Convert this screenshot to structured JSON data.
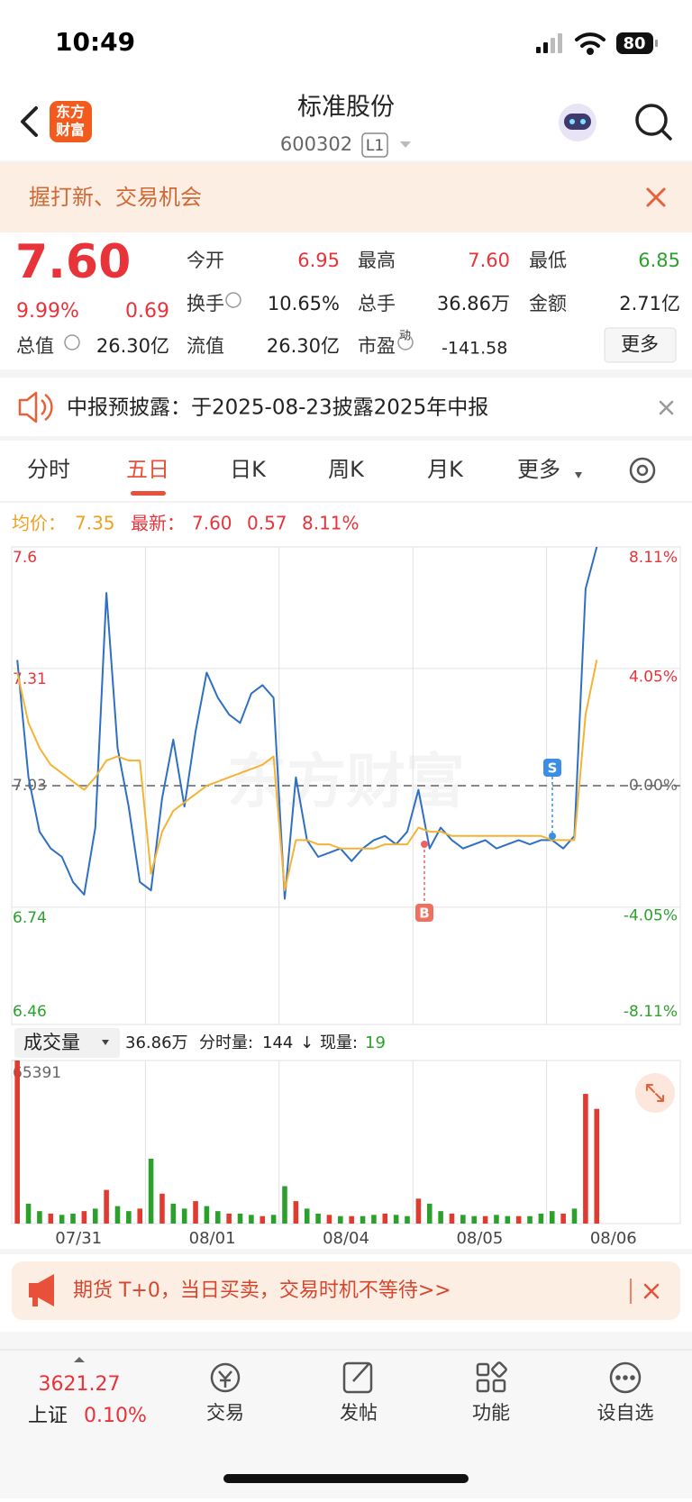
{
  "status": {
    "time": "10:49",
    "battery": "80"
  },
  "header": {
    "logo": [
      "东方",
      "财富"
    ],
    "title": "标准股份",
    "code": "600302",
    "level": "L1"
  },
  "promo": {
    "text": "握打新、交易机会"
  },
  "quote": {
    "price": "7.60",
    "change_pct": "9.99%",
    "change": "0.69",
    "fields": [
      {
        "label": "今开",
        "value": "6.95"
      },
      {
        "label": "最高",
        "value": "7.60"
      },
      {
        "label": "最低",
        "value": "6.85"
      },
      {
        "label": "换手",
        "value": "10.65%"
      },
      {
        "label": "总手",
        "value": "36.86万"
      },
      {
        "label": "金额",
        "value": "2.71亿"
      },
      {
        "label": "总值",
        "value": "26.30亿"
      },
      {
        "label": "流值",
        "value": "26.30亿"
      },
      {
        "label": "市盈",
        "sup": "动",
        "value": "-141.58"
      }
    ],
    "more": "更多"
  },
  "notice": {
    "text": "中报预披露：于2025-08-23披露2025年中报"
  },
  "tabs": [
    "分时",
    "五日",
    "日K",
    "周K",
    "月K",
    "更多"
  ],
  "summary": {
    "avg_label": "均价：",
    "avg": "7.35",
    "last_label": "最新：",
    "last": "7.60",
    "change": "0.57",
    "change_pct": "8.11%"
  },
  "watermark": "东方财富",
  "trade_marks": [
    "B",
    "S"
  ],
  "volume_header": {
    "label": "成交量",
    "total": "36.86万",
    "tick_label": "分时量:",
    "tick": "144",
    "arrow": "↓",
    "now_label": "现量:",
    "now": "19"
  },
  "chart_data": [
    {
      "type": "line",
      "grid": true,
      "ylim": [
        6.46,
        7.6
      ],
      "yticks": [
        6.46,
        6.74,
        7.03,
        7.31,
        7.6
      ],
      "y2lim": [
        -8.11,
        8.11
      ],
      "y2ticks": [
        {
          "value": -8.11,
          "label": "-8.11%"
        },
        {
          "value": -4.05,
          "label": "-4.05%"
        },
        {
          "value": 0,
          "label": "0.00%"
        },
        {
          "value": 4.05,
          "label": "4.05%"
        },
        {
          "value": 8.11,
          "label": "8.11%"
        }
      ],
      "series": [
        {
          "color": "#2f6fc3",
          "values": [
            7.33,
            7.05,
            6.92,
            6.88,
            6.86,
            6.8,
            6.77,
            6.93,
            7.49,
            7.12,
            6.98,
            6.8,
            6.78,
            7.0,
            7.14,
            6.98,
            7.16,
            7.3,
            7.24,
            7.2,
            7.18,
            7.25,
            7.27,
            7.24,
            6.76,
            7.05,
            6.9,
            6.86,
            6.87,
            6.88,
            6.85,
            6.88,
            6.9,
            6.91,
            6.89,
            6.92,
            7.02,
            6.88,
            6.93,
            6.9,
            6.88,
            6.89,
            6.9,
            6.88,
            6.89,
            6.9,
            6.89,
            6.9,
            6.9,
            6.88,
            6.91,
            7.5,
            7.6,
            null,
            null,
            null,
            null,
            null,
            null,
            null
          ]
        },
        {
          "color": "#f5b335",
          "values": [
            7.3,
            7.18,
            7.12,
            7.08,
            7.06,
            7.04,
            7.02,
            7.05,
            7.09,
            7.1,
            7.09,
            7.09,
            6.82,
            6.92,
            6.97,
            6.99,
            7.01,
            7.03,
            7.04,
            7.05,
            7.06,
            7.07,
            7.08,
            7.1,
            6.78,
            6.9,
            6.9,
            6.89,
            6.89,
            6.88,
            6.88,
            6.88,
            6.88,
            6.89,
            6.89,
            6.89,
            6.93,
            6.92,
            6.92,
            6.91,
            6.91,
            6.91,
            6.91,
            6.91,
            6.91,
            6.91,
            6.91,
            6.91,
            6.9,
            6.9,
            6.9,
            7.2,
            7.33,
            null,
            null,
            null,
            null,
            null,
            null,
            null
          ]
        }
      ]
    },
    {
      "type": "bar",
      "days": [
        "07/31",
        "08/01",
        "08/04",
        "08/05",
        "08/06"
      ],
      "ylim": [
        0,
        65391
      ],
      "yticks": [
        65391
      ],
      "values": [
        65391,
        8000,
        5000,
        4000,
        3500,
        4000,
        5000,
        6000,
        13500,
        7000,
        5000,
        6000,
        26000,
        12000,
        8000,
        6000,
        9000,
        7000,
        5000,
        4000,
        4000,
        3500,
        3000,
        3500,
        15000,
        9000,
        6000,
        4000,
        3500,
        3000,
        3000,
        3000,
        3500,
        4000,
        3500,
        3000,
        10000,
        8000,
        5000,
        4000,
        3500,
        3000,
        3000,
        3500,
        3000,
        3000,
        3000,
        4000,
        5000,
        4000,
        6000,
        52000,
        46000,
        null,
        null,
        null,
        null,
        null,
        null,
        null
      ],
      "colors": [
        "#e03b30",
        "#2ca02c",
        "#2ca02c",
        "#e03b30",
        "#2ca02c",
        "#2ca02c",
        "#e03b30",
        "#2ca02c",
        "#e03b30",
        "#2ca02c",
        "#2ca02c",
        "#e03b30",
        "#2ca02c",
        "#e03b30",
        "#2ca02c",
        "#2ca02c",
        "#e03b30",
        "#2ca02c",
        "#2ca02c",
        "#e03b30",
        "#2ca02c",
        "#2ca02c",
        "#e03b30",
        "#2ca02c",
        "#2ca02c",
        "#e03b30",
        "#2ca02c",
        "#2ca02c",
        "#e03b30",
        "#2ca02c",
        "#e03b30",
        "#2ca02c",
        "#2ca02c",
        "#e03b30",
        "#2ca02c",
        "#2ca02c",
        "#e03b30",
        "#2ca02c",
        "#2ca02c",
        "#e03b30",
        "#2ca02c",
        "#2ca02c",
        "#e03b30",
        "#2ca02c",
        "#2ca02c",
        "#e03b30",
        "#2ca02c",
        "#2ca02c",
        "#2ca02c",
        "#e03b30",
        "#2ca02c",
        "#e03b30",
        "#e03b30",
        null,
        null,
        null,
        null,
        null,
        null,
        null
      ]
    }
  ],
  "ad": {
    "text": "期货 T+0，当日买卖，交易时机不等待>>"
  },
  "nav": {
    "index_value": "3621.27",
    "index_name": "上证",
    "index_change": "0.10%",
    "items": [
      "交易",
      "发帖",
      "功能",
      "设自选"
    ]
  }
}
